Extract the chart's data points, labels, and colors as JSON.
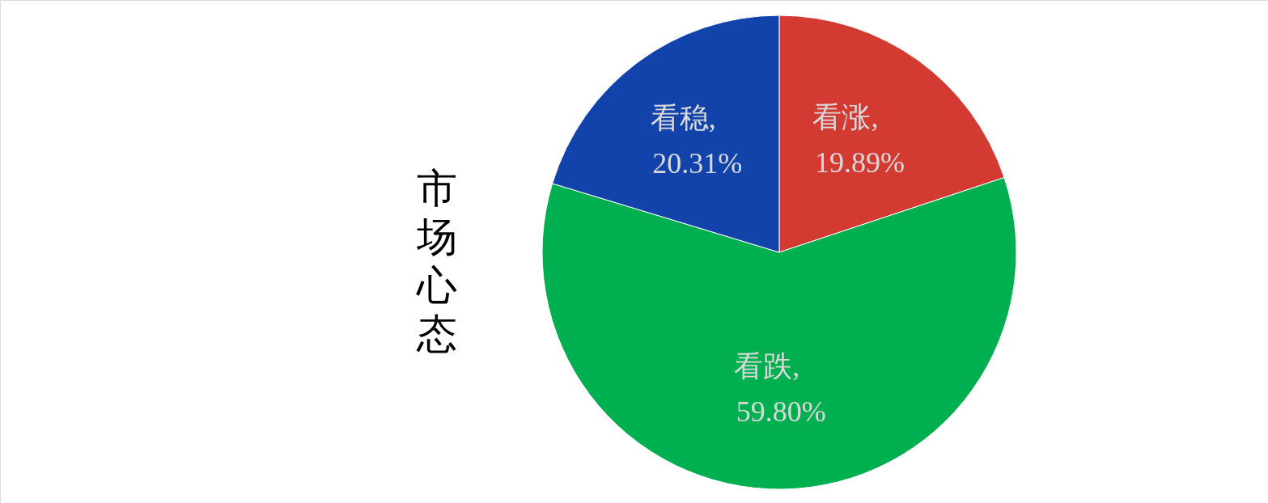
{
  "chart_data": {
    "type": "pie",
    "title": "市场心态",
    "categories": [
      "看涨",
      "看跌",
      "看稳"
    ],
    "values": [
      19.89,
      59.8,
      20.31
    ],
    "colors": [
      "#d33a32",
      "#00b050",
      "#1243aa"
    ],
    "value_labels": [
      ",\n19.89%",
      ",\n59.80%",
      ",\n20.31%"
    ],
    "legend": false
  }
}
